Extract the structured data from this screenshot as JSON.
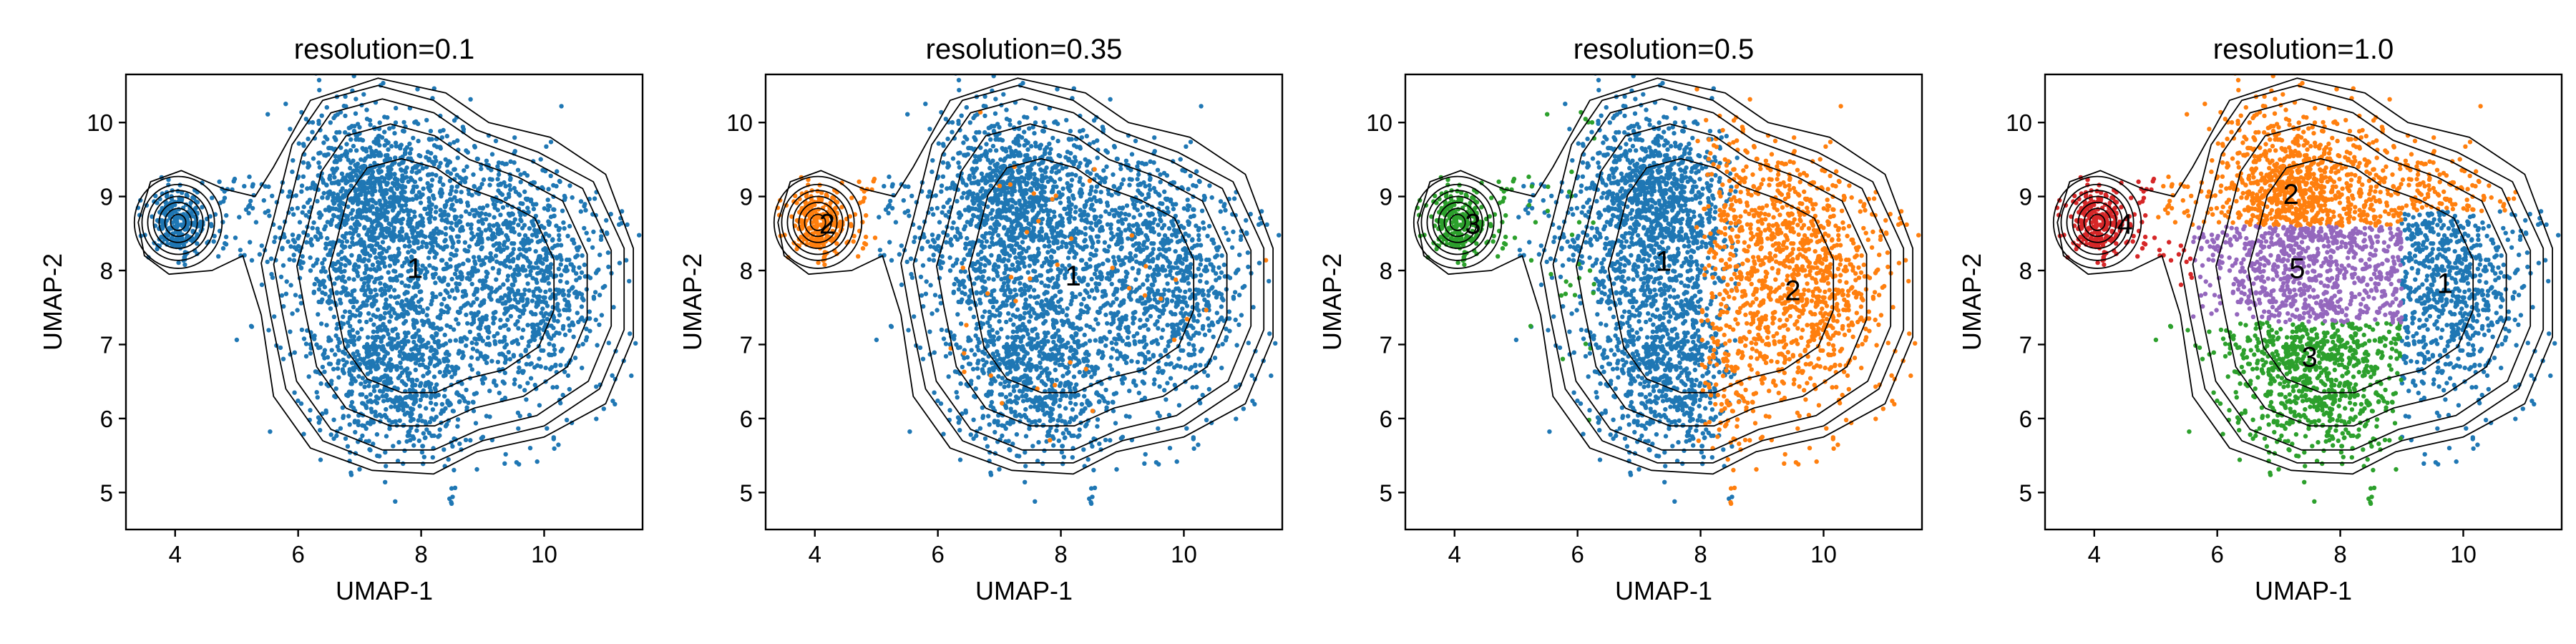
{
  "chart_data": [
    {
      "type": "scatter",
      "title": "resolution=0.1",
      "xlabel": "UMAP-1",
      "ylabel": "UMAP-2",
      "xlim": [
        3.2,
        11.6
      ],
      "ylim": [
        4.5,
        10.65
      ],
      "xticks": [
        "4",
        "6",
        "8",
        "10"
      ],
      "yticks": [
        "5",
        "6",
        "7",
        "8",
        "9",
        "10"
      ],
      "grid": false,
      "legend": "none",
      "clusters": [
        {
          "label": "1",
          "color": "#1f77b4",
          "label_x": 7.9,
          "label_y": 8.0
        }
      ]
    },
    {
      "type": "scatter",
      "title": "resolution=0.35",
      "xlabel": "UMAP-1",
      "ylabel": "UMAP-2",
      "xlim": [
        3.2,
        11.6
      ],
      "ylim": [
        4.5,
        10.65
      ],
      "xticks": [
        "4",
        "6",
        "8",
        "10"
      ],
      "yticks": [
        "5",
        "6",
        "7",
        "8",
        "9",
        "10"
      ],
      "grid": false,
      "legend": "none",
      "clusters": [
        {
          "label": "1",
          "color": "#1f77b4",
          "label_x": 8.2,
          "label_y": 7.9
        },
        {
          "label": "2",
          "color": "#ff7f0e",
          "label_x": 4.2,
          "label_y": 8.6
        }
      ]
    },
    {
      "type": "scatter",
      "title": "resolution=0.5",
      "xlabel": "UMAP-1",
      "ylabel": "UMAP-2",
      "xlim": [
        3.2,
        11.6
      ],
      "ylim": [
        4.5,
        10.65
      ],
      "xticks": [
        "4",
        "6",
        "8",
        "10"
      ],
      "yticks": [
        "5",
        "6",
        "7",
        "8",
        "9",
        "10"
      ],
      "grid": false,
      "legend": "none",
      "clusters": [
        {
          "label": "1",
          "color": "#1f77b4",
          "label_x": 7.4,
          "label_y": 8.1
        },
        {
          "label": "2",
          "color": "#ff7f0e",
          "label_x": 9.5,
          "label_y": 7.7
        },
        {
          "label": "3",
          "color": "#2ca02c",
          "label_x": 4.3,
          "label_y": 8.6
        }
      ]
    },
    {
      "type": "scatter",
      "title": "resolution=1.0",
      "xlabel": "UMAP-1",
      "ylabel": "UMAP-2",
      "xlim": [
        3.2,
        11.6
      ],
      "ylim": [
        4.5,
        10.65
      ],
      "xticks": [
        "4",
        "6",
        "8",
        "10"
      ],
      "yticks": [
        "5",
        "6",
        "7",
        "8",
        "9",
        "10"
      ],
      "grid": false,
      "legend": "none",
      "clusters": [
        {
          "label": "1",
          "color": "#1f77b4",
          "label_x": 9.7,
          "label_y": 7.8
        },
        {
          "label": "2",
          "color": "#ff7f0e",
          "label_x": 7.2,
          "label_y": 9.0
        },
        {
          "label": "3",
          "color": "#2ca02c",
          "label_x": 7.5,
          "label_y": 6.8
        },
        {
          "label": "4",
          "color": "#d62728",
          "label_x": 4.5,
          "label_y": 8.6
        },
        {
          "label": "5",
          "color": "#9467bd",
          "label_x": 7.3,
          "label_y": 8.0
        }
      ]
    }
  ],
  "colors": {
    "cluster_1": "#1f77b4",
    "cluster_2": "#ff7f0e",
    "cluster_3": "#2ca02c",
    "cluster_4": "#d62728",
    "cluster_5": "#9467bd"
  }
}
